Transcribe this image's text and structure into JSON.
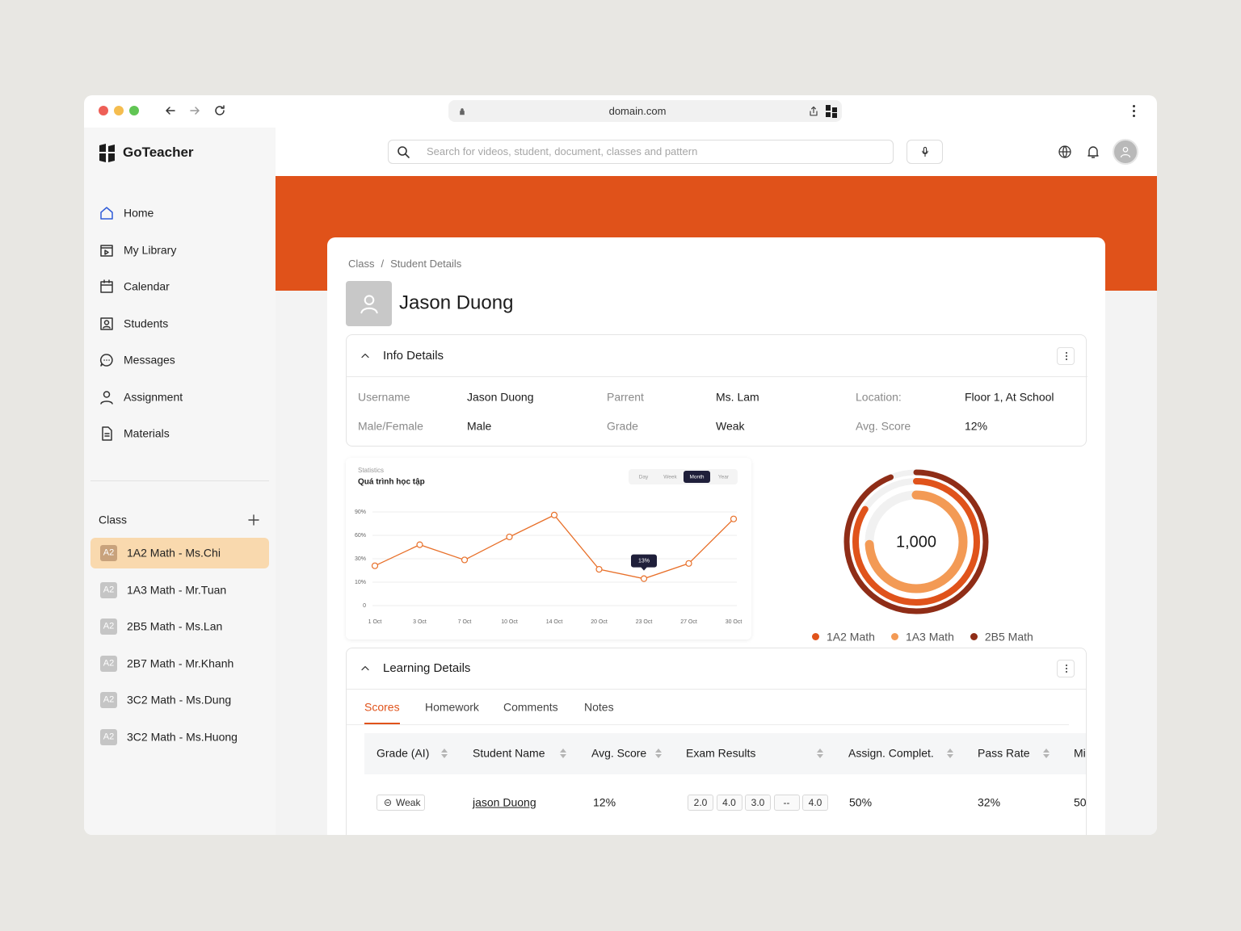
{
  "browser": {
    "url": "domain.com"
  },
  "sidebar": {
    "brand": "GoTeacher",
    "nav": [
      "Home",
      "My Library",
      "Calendar",
      "Students",
      "Messages",
      "Assignment",
      "Materials"
    ],
    "class_heading": "Class",
    "classes": [
      {
        "badge": "A2",
        "label": "1A2 Math - Ms.Chi"
      },
      {
        "badge": "A2",
        "label": "1A3 Math - Mr.Tuan"
      },
      {
        "badge": "A2",
        "label": "2B5 Math - Ms.Lan"
      },
      {
        "badge": "A2",
        "label": "2B7 Math - Mr.Khanh"
      },
      {
        "badge": "A2",
        "label": "3C2 Math - Ms.Dung"
      },
      {
        "badge": "A2",
        "label": "3C2 Math - Ms.Huong"
      }
    ],
    "active_class": 0
  },
  "header": {
    "search_placeholder": "Search for videos, student, document, classes and pattern"
  },
  "breadcrumb": [
    "Class",
    "/",
    "Student Details"
  ],
  "student_name": "Jason Duong",
  "info": {
    "title": "Info Details",
    "fields": [
      {
        "label": "Username",
        "value": "Jason Duong"
      },
      {
        "label": "Parrent",
        "value": "Ms. Lam"
      },
      {
        "label": "Location:",
        "value": "Floor 1, At School"
      },
      {
        "label": "Male/Female",
        "value": "Male"
      },
      {
        "label": "Grade",
        "value": "Weak"
      },
      {
        "label": "Avg. Score",
        "value": "12%"
      }
    ]
  },
  "chart_data": [
    {
      "type": "line",
      "subtitle": "Statistics",
      "title": "Quá trình học tập",
      "periods": [
        "Day",
        "Week",
        "Month",
        "Year"
      ],
      "active_period": 2,
      "categories": [
        "1 Oct",
        "3 Oct",
        "7 Oct",
        "10 Oct",
        "14 Oct",
        "20 Oct",
        "23 Oct",
        "27 Oct",
        "30 Oct"
      ],
      "series": [
        {
          "color": "#e8702a",
          "values": [
            24,
            48,
            29,
            58,
            86,
            21,
            13,
            26,
            81
          ],
          "value_labels": [
            null,
            null,
            null,
            null,
            null,
            null,
            "13%",
            null,
            null
          ]
        }
      ],
      "ylim": [
        0,
        90
      ],
      "yticks": [
        0,
        {
          "value": 10,
          "label": "10%"
        },
        {
          "value": 30,
          "label": "30%"
        },
        {
          "value": 60,
          "label": "60%"
        },
        {
          "value": 90,
          "label": "90%"
        }
      ],
      "grid": true
    },
    {
      "type": "donut",
      "center_label": "1,000",
      "categories": [
        "1A2 Math",
        "1A3 Math",
        "2B5 Math"
      ],
      "values": [
        84,
        74,
        94
      ],
      "colors": [
        "#e0531b",
        "#f39a55",
        "#8f2d17"
      ]
    }
  ],
  "learning": {
    "title": "Learning Details",
    "tabs": [
      "Scores",
      "Homework",
      "Comments",
      "Notes"
    ],
    "active_tab": 0,
    "table": {
      "columns": [
        "Grade (AI)",
        "Student Name",
        "Avg. Score",
        "Exam Results",
        "Assign. Complet.",
        "Pass Rate",
        "Mi"
      ],
      "rows": [
        [
          "Weak",
          "jason Duong",
          "12%",
          [
            "2.0",
            "4.0",
            "3.0",
            "--",
            "4.0"
          ],
          "50%",
          "32%",
          "50"
        ]
      ]
    }
  }
}
